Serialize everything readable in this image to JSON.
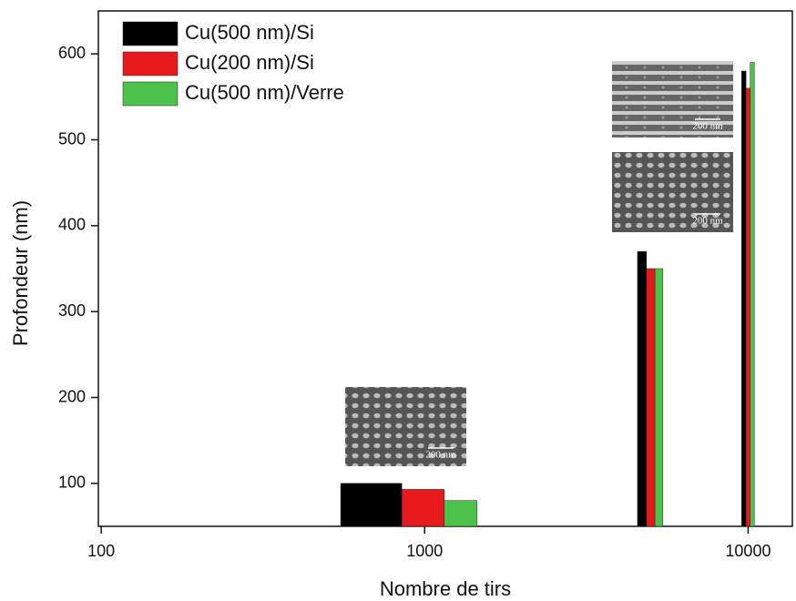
{
  "chart_data": {
    "type": "bar",
    "x_label": "Nombre de tirs",
    "y_label": "Profondeur (nm)",
    "x": [
      1000,
      5000,
      10000
    ],
    "series": [
      {
        "name": "Cu(500 nm)/Si",
        "color": "#000000",
        "values": [
          100,
          370,
          580
        ]
      },
      {
        "name": "Cu(200 nm)/Si",
        "color": "#e8191c",
        "values": [
          93,
          350,
          560
        ]
      },
      {
        "name": "Cu(500 nm)/Verre",
        "color": "#4cc24a",
        "values": [
          80,
          350,
          590
        ]
      }
    ],
    "xlim": [
      98,
      13700
    ],
    "xticks": [
      100,
      1000,
      10000
    ],
    "log_x": true,
    "ylim": [
      50,
      650
    ],
    "yticks": [
      100,
      200,
      300,
      400,
      500,
      600
    ],
    "grid": false,
    "legend": "upper left",
    "annotations": [
      "200 nm",
      "200 nm",
      "200 nm"
    ]
  }
}
